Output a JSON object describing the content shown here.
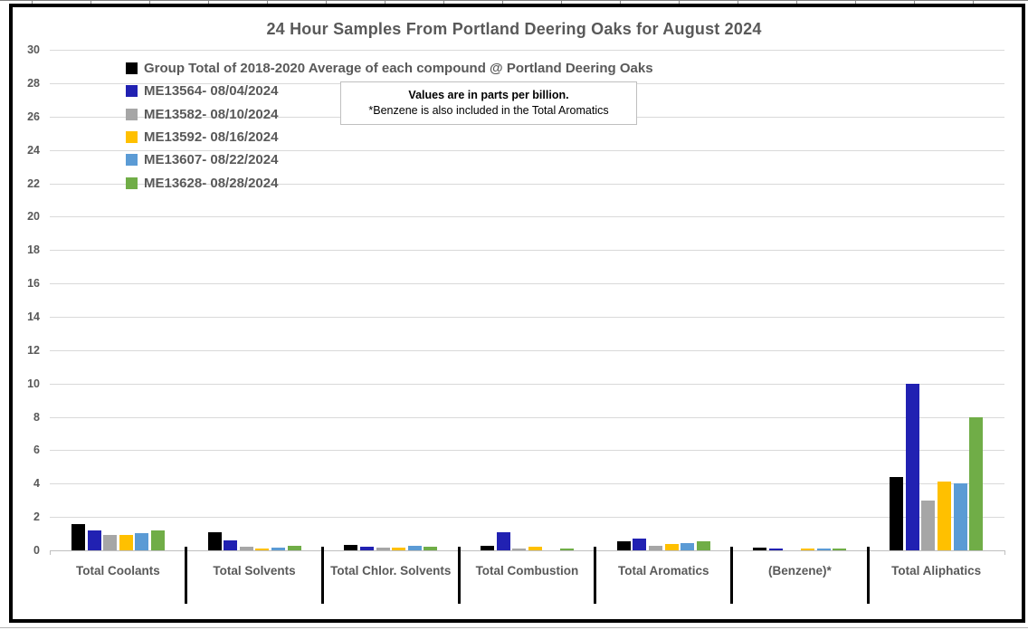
{
  "chart_data": {
    "type": "bar",
    "title": "24 Hour Samples From Portland Deering Oaks for August 2024",
    "units_note": "Values are in parts per billion.",
    "footnote": "*Benzene is also included in the Total Aromatics",
    "categories": [
      "Total Coolants",
      "Total Solvents",
      "Total Chlor. Solvents",
      "Total Combustion",
      "Total Aromatics",
      "(Benzene)*",
      "Total Aliphatics"
    ],
    "series": [
      {
        "name": "Group Total of 2018-2020 Average of each compound @ Portland Deering Oaks",
        "color": "#000000",
        "values": [
          1.6,
          1.1,
          0.35,
          0.25,
          0.55,
          0.15,
          4.4
        ]
      },
      {
        "name": "ME13564- 08/04/2024",
        "color": "#2121b2",
        "values": [
          1.2,
          0.6,
          0.2,
          1.1,
          0.7,
          0.1,
          10.0
        ]
      },
      {
        "name": "ME13582- 08/10/2024",
        "color": "#a6a6a6",
        "values": [
          0.95,
          0.2,
          0.15,
          0.12,
          0.3,
          0,
          3.0
        ]
      },
      {
        "name": "ME13592- 08/16/2024",
        "color": "#ffc000",
        "values": [
          0.95,
          0.12,
          0.15,
          0.2,
          0.4,
          0.12,
          4.15
        ]
      },
      {
        "name": "ME13607- 08/22/2024",
        "color": "#5b9bd5",
        "values": [
          1.05,
          0.15,
          0.25,
          0,
          0.45,
          0.12,
          4.0
        ]
      },
      {
        "name": "ME13628- 08/28/2024",
        "color": "#70ad47",
        "values": [
          1.2,
          0.3,
          0.2,
          0.12,
          0.55,
          0.12,
          8.0
        ]
      }
    ],
    "ylim": [
      0,
      30
    ],
    "ytick_step": 2,
    "grid": true,
    "legend_position": "top-left",
    "axis_color": "#bfbfbf",
    "gridline_color": "#d9d9d9",
    "text_color": "#595959"
  }
}
